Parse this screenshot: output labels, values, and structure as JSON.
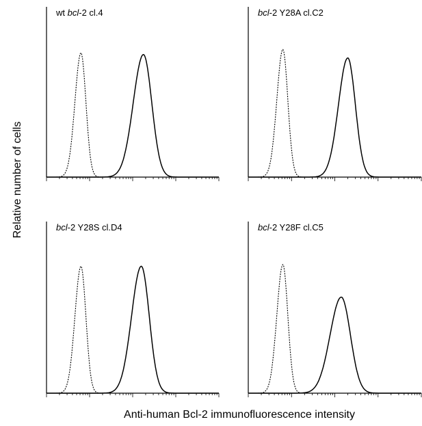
{
  "figure": {
    "ylabel": "Relative number of cells",
    "xlabel": "Anti-human Bcl-2 immunofluorescence intensity"
  },
  "chart_data": [
    {
      "type": "line",
      "label_prefix": "wt",
      "label_gene": "bcl",
      "label_rest": "-2 cl.4",
      "xscale": "log",
      "xlim": [
        0,
        4
      ],
      "ylim": [
        0,
        1
      ],
      "series": [
        {
          "style": "dotted",
          "peak_x": 0.8,
          "spread": 0.13,
          "peak": 0.73
        },
        {
          "style": "solid",
          "peak_x": 2.25,
          "spread": 0.22,
          "peak": 0.72
        }
      ]
    },
    {
      "type": "line",
      "label_prefix": "",
      "label_gene": "bcl",
      "label_rest": "-2 Y28A cl.C2",
      "xscale": "log",
      "xlim": [
        0,
        4
      ],
      "ylim": [
        0,
        1
      ],
      "series": [
        {
          "style": "dotted",
          "peak_x": 0.8,
          "spread": 0.13,
          "peak": 0.75
        },
        {
          "style": "solid",
          "peak_x": 2.3,
          "spread": 0.2,
          "peak": 0.7
        }
      ]
    },
    {
      "type": "line",
      "label_prefix": "",
      "label_gene": "bcl",
      "label_rest": "-2 Y28S cl.D4",
      "xscale": "log",
      "xlim": [
        0,
        4
      ],
      "ylim": [
        0,
        1
      ],
      "series": [
        {
          "style": "dotted",
          "peak_x": 0.8,
          "spread": 0.13,
          "peak": 0.74
        },
        {
          "style": "solid",
          "peak_x": 2.2,
          "spread": 0.21,
          "peak": 0.74
        }
      ]
    },
    {
      "type": "line",
      "label_prefix": "",
      "label_gene": "bcl",
      "label_rest": "-2 Y28F cl.C5",
      "xscale": "log",
      "xlim": [
        0,
        4
      ],
      "ylim": [
        0,
        1
      ],
      "series": [
        {
          "style": "dotted",
          "peak_x": 0.8,
          "spread": 0.13,
          "peak": 0.75
        },
        {
          "style": "solid",
          "peak_x": 2.15,
          "spread": 0.24,
          "peak": 0.56
        }
      ]
    }
  ]
}
